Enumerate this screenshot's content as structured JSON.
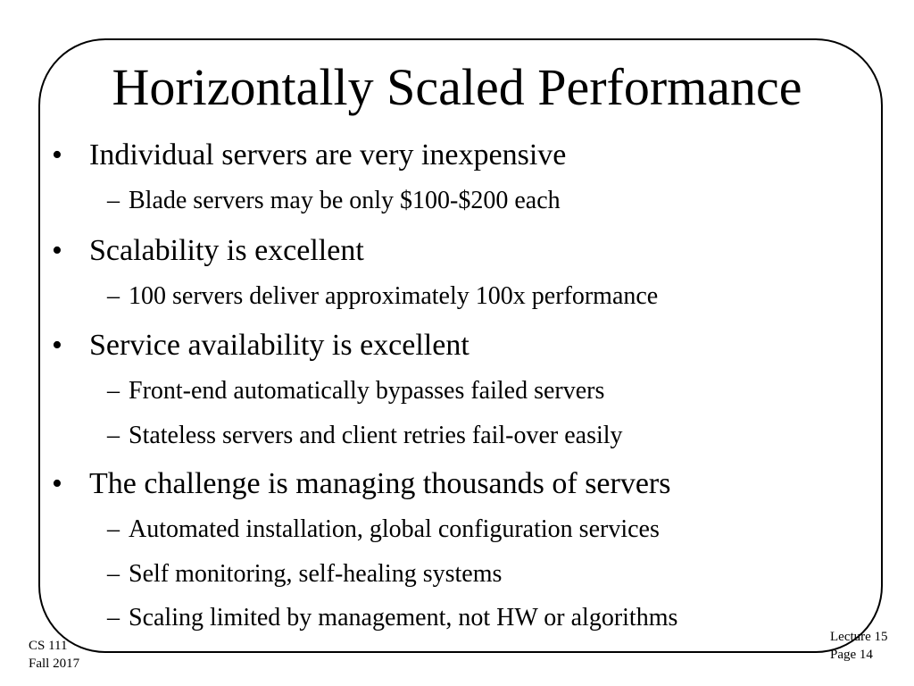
{
  "slide": {
    "title": "Horizontally Scaled Performance",
    "bullets": [
      {
        "marker": "•",
        "text": "Individual servers are very inexpensive",
        "subs": [
          {
            "marker": "–",
            "text": "Blade servers may be only $100-$200 each"
          }
        ]
      },
      {
        "marker": "•",
        "text": "Scalability is excellent",
        "subs": [
          {
            "marker": "–",
            "text": "100 servers deliver approximately 100x performance"
          }
        ]
      },
      {
        "marker": "•",
        "text": "Service availability is excellent",
        "subs": [
          {
            "marker": "–",
            "text": "Front-end automatically bypasses failed servers"
          },
          {
            "marker": "–",
            "text": "Stateless servers and client retries fail-over easily"
          }
        ]
      },
      {
        "marker": "•",
        "text": "The challenge is managing thousands of servers",
        "subs": [
          {
            "marker": "–",
            "text": "Automated installation, global configuration services"
          },
          {
            "marker": "–",
            "text": "Self monitoring, self-healing systems"
          },
          {
            "marker": "–",
            "text": "Scaling limited by management, not HW or algorithms"
          }
        ]
      }
    ]
  },
  "footer": {
    "course": "CS 111",
    "term": "Fall 2017",
    "lecture": "Lecture 15",
    "page": "Page 14"
  }
}
